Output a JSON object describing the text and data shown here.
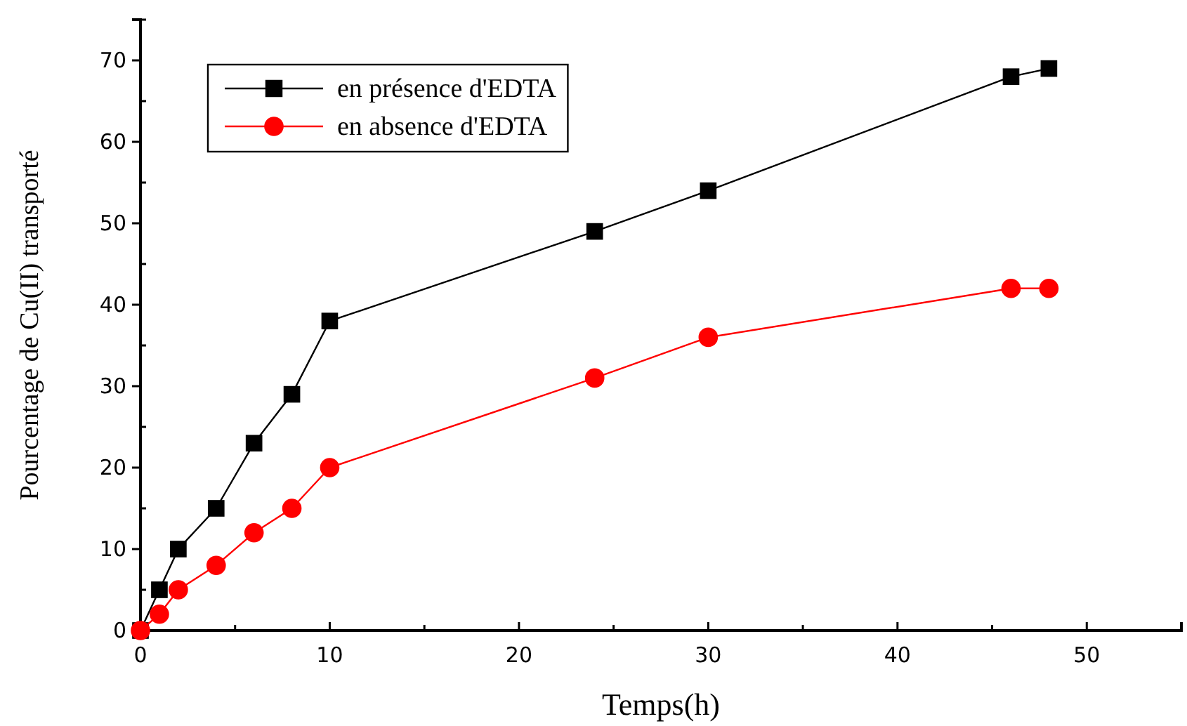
{
  "chart_data": {
    "type": "line",
    "xlabel": "Temps(h)",
    "ylabel": "Pourcentage de Cu(II) transporté",
    "x": [
      0,
      1,
      2,
      4,
      6,
      8,
      10,
      24,
      30,
      46,
      48
    ],
    "series": [
      {
        "name": "en présence d'EDTA",
        "color": "#000000",
        "marker": "square",
        "values": [
          0,
          5,
          10,
          15,
          23,
          29,
          38,
          49,
          54,
          68,
          69
        ]
      },
      {
        "name": "en absence d'EDTA",
        "color": "#ff0000",
        "marker": "circle",
        "values": [
          0,
          2,
          5,
          8,
          12,
          15,
          20,
          31,
          36,
          42,
          42
        ]
      }
    ],
    "xlim": [
      0,
      55
    ],
    "xticks": [
      0,
      {
        "value": 5,
        "label": null
      },
      10,
      {
        "value": 15,
        "label": null
      },
      20,
      {
        "value": 25,
        "label": null
      },
      30,
      {
        "value": 35,
        "label": null
      },
      40,
      {
        "value": 45,
        "label": null
      },
      50
    ],
    "ylim": [
      0,
      75
    ],
    "yticks": [
      0,
      {
        "value": 5,
        "label": null
      },
      10,
      {
        "value": 15,
        "label": null
      },
      20,
      {
        "value": 25,
        "label": null
      },
      30,
      {
        "value": 35,
        "label": null
      },
      40,
      {
        "value": 45,
        "label": null
      },
      50,
      {
        "value": 55,
        "label": null
      },
      60,
      {
        "value": 65,
        "label": null
      },
      70,
      {
        "value": 75,
        "label": null
      }
    ],
    "grid": false,
    "legend": "top left",
    "line_style": "solid"
  }
}
